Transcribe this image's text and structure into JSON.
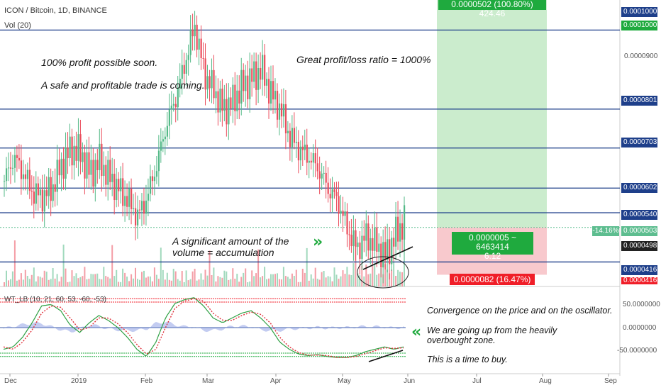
{
  "header": {
    "symbol": "ICON / Bitcoin, 1D, BINANCE",
    "volume_label": "Vol (20)",
    "indicator_label": "WT_LB (10, 21, 60, 53, -60, -53)"
  },
  "annotations": {
    "profit_possible": "100% profit possible soon.",
    "safe_trade": "A safe and profitable trade is coming.",
    "ratio": "Great profit/loss ratio = 1000%",
    "volume_note": "A significant amount of the volume = accumulation",
    "convergence": "Convergence on the price and on the oscillator.",
    "going_up": "We are going up from the heavily overbought zone.",
    "time_to_buy": "This is a time to buy."
  },
  "position": {
    "target_label": "0.0000502 (100.80%) 424.46",
    "entry_label_1": "0.0000005 ~ 6463414",
    "entry_label_2": "6.12",
    "stop_label": "0.0000082 (16.47%) 47"
  },
  "price_labels": {
    "target": "0.0001000",
    "target2": "0.0001000",
    "l801": "0.0000801",
    "l703": "0.0000703",
    "l602": "0.0000602",
    "l540": "0.0000540",
    "current_pct": "-14.16%",
    "current": "0.0000503",
    "l498": "0.0000498",
    "l416": "0.0000416",
    "l416b": "0.0000416"
  },
  "axis": {
    "p900": "0.0000900",
    "o50": "50.0000000",
    "o0": "0.0000000",
    "om50": "-50.0000000"
  },
  "colors": {
    "up": "#53b987",
    "down": "#eb4d5c",
    "hline": "#1e3f8a",
    "target_zone": "#cbeccd",
    "stop_zone": "#f8c9cd",
    "green_label": "#1faa3e",
    "red_label": "#f01e28",
    "current_label": "#5dbd8f"
  },
  "chart_data": {
    "type": "candlestick",
    "x_tick_labels": [
      "Dec",
      "2019",
      "Feb",
      "Mar",
      "Apr",
      "May",
      "Jun",
      "Jul",
      "Aug",
      "Sep"
    ],
    "horizontal_levels": [
      0.0001,
      8.01e-05,
      7.03e-05,
      6.02e-05,
      5.4e-05,
      5.03e-05,
      4.16e-05
    ],
    "price_path": [
      6.2e-05,
      6.8e-05,
      6.4e-05,
      5.9e-05,
      5.8e-05,
      6e-05,
      6.6e-05,
      7e-05,
      6.9e-05,
      6.4e-05,
      6.7e-05,
      6.3e-05,
      6e-05,
      5.7e-05,
      5.3e-05,
      5.8e-05,
      6.6e-05,
      7.6e-05,
      8.3e-05,
      9.2e-05,
      0.000101,
      8.9e-05,
      8.5e-05,
      8e-05,
      8.2e-05,
      8.6e-05,
      8.8e-05,
      9e-05,
      8.4e-05,
      8e-05,
      7.3e-05,
      7e-05,
      6.8e-05,
      6.5e-05,
      6e-05,
      5.7e-05,
      5e-05,
      4.5e-05,
      4.8e-05,
      4.6e-05,
      4.3e-05,
      4.8e-05,
      5.2e-05
    ],
    "volume_note": "volume bars at bottom of price pane",
    "indicator": {
      "name": "WT_LB",
      "levels": [
        60,
        53,
        -60,
        -53
      ],
      "wt1_path": [
        -45,
        -40,
        -20,
        10,
        45,
        48,
        35,
        5,
        -10,
        10,
        25,
        15,
        0,
        -20,
        -45,
        -60,
        -30,
        20,
        50,
        58,
        62,
        45,
        20,
        10,
        20,
        30,
        35,
        20,
        0,
        -30,
        -45,
        -55,
        -58,
        -56,
        -60,
        -62,
        -62,
        -58,
        -50,
        -45,
        -40,
        -45,
        -40
      ],
      "wt2_path": [
        -40,
        -45,
        -30,
        -5,
        30,
        45,
        42,
        20,
        -5,
        0,
        20,
        20,
        8,
        -10,
        -35,
        -55,
        -45,
        0,
        40,
        55,
        60,
        55,
        30,
        15,
        15,
        25,
        32,
        28,
        10,
        -20,
        -40,
        -52,
        -57,
        -57,
        -58,
        -62,
        -62,
        -60,
        -54,
        -48,
        -42,
        -43,
        -42
      ]
    }
  }
}
